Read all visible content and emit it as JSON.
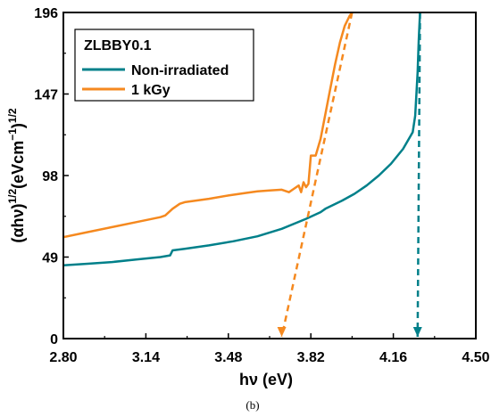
{
  "chart_data": {
    "type": "line",
    "xlabel": "hν (eV)",
    "ylabel_base": "(αhν)",
    "ylabel_exp1": "1/2",
    "ylabel_unit": "(eVcm",
    "ylabel_unit_exp": "−1",
    "ylabel_unit_close": ")",
    "ylabel_exp2": "1/2",
    "xlim": [
      2.8,
      4.5
    ],
    "ylim": [
      0,
      196
    ],
    "xticks": [
      "2.80",
      "3.14",
      "3.48",
      "3.82",
      "4.16",
      "4.50"
    ],
    "yticks": [
      "0",
      "49",
      "98",
      "147",
      "196"
    ],
    "xtick_values": [
      2.8,
      3.14,
      3.48,
      3.82,
      4.16,
      4.5
    ],
    "ytick_values": [
      0,
      49,
      98,
      147,
      196
    ],
    "legend": {
      "title": "ZLBBY0.1",
      "placement": "top-left"
    },
    "series": [
      {
        "name": "Non-irradiated",
        "color": "#00808a",
        "x": [
          2.8,
          2.9,
          3.0,
          3.1,
          3.2,
          3.24,
          3.25,
          3.3,
          3.4,
          3.5,
          3.6,
          3.7,
          3.8,
          3.86,
          3.88,
          3.95,
          4.0,
          4.05,
          4.1,
          4.15,
          4.2,
          4.24,
          4.25,
          4.26,
          4.265,
          4.27
        ],
        "y": [
          44,
          45,
          46,
          47.5,
          49,
          50,
          53,
          54,
          56,
          58.5,
          61.5,
          66,
          72,
          76,
          78,
          83,
          87,
          92,
          98,
          105,
          114,
          124,
          134,
          160,
          180,
          196
        ]
      },
      {
        "name": "1 kGy",
        "color": "#f5891f",
        "x": [
          2.8,
          2.9,
          3.0,
          3.1,
          3.2,
          3.22,
          3.25,
          3.28,
          3.3,
          3.4,
          3.48,
          3.55,
          3.6,
          3.65,
          3.7,
          3.73,
          3.75,
          3.77,
          3.78,
          3.79,
          3.8,
          3.81,
          3.82,
          3.84,
          3.86,
          3.88,
          3.9,
          3.92,
          3.94,
          3.96,
          3.98,
          3.99
        ],
        "y": [
          61,
          64,
          67,
          70,
          73,
          74,
          78,
          81,
          82,
          84,
          86,
          87.5,
          88.5,
          89,
          89.5,
          88,
          90,
          92,
          88,
          94,
          91,
          93,
          110,
          110,
          120,
          135,
          150,
          165,
          178,
          188,
          194,
          196
        ]
      }
    ],
    "extrapolations": [
      {
        "series": "1 kGy",
        "color": "#f5891f",
        "from": [
          3.99,
          196
        ],
        "to": [
          3.7,
          0
        ],
        "arrow_x": 3.7
      },
      {
        "series": "Non-irradiated",
        "color": "#00808a",
        "from": [
          4.27,
          196
        ],
        "to": [
          4.26,
          0
        ],
        "arrow_x": 4.26
      }
    ]
  },
  "caption": "(b)"
}
